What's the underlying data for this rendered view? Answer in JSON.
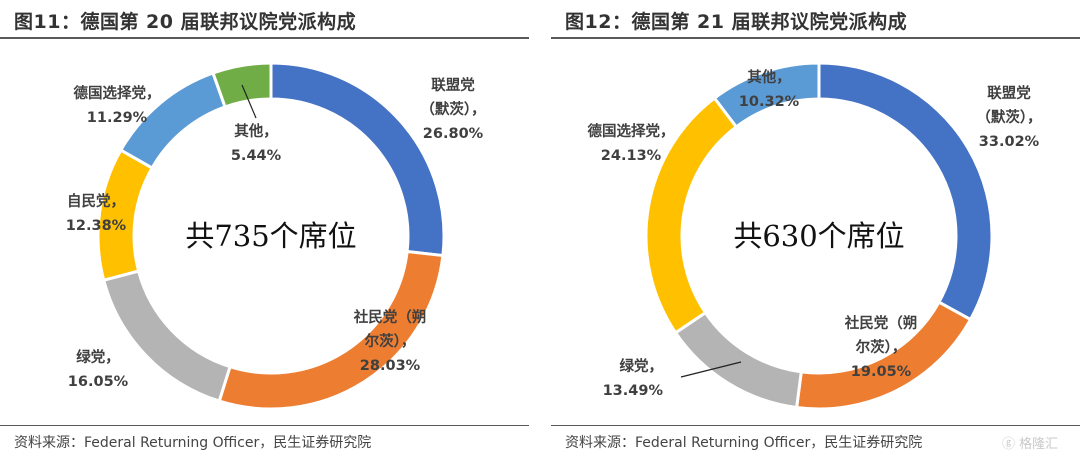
{
  "panels": [
    {
      "title": "图11：德国第 20 届联邦议院党派构成",
      "center_label": "共735个席位",
      "source": "资料来源：Federal Returning Officer，民生证券研究院"
    },
    {
      "title": "图12：德国第 21 届联邦议院党派构成",
      "center_label": "共630个席位",
      "source": "资料来源：Federal Returning Officer，民生证券研究院"
    }
  ],
  "chart_data": [
    {
      "type": "pie",
      "variant": "donut",
      "title": "图11：德国第 20 届联邦议院党派构成",
      "center_text": "共735个席位",
      "start": "12 o'clock, clockwise",
      "slices": [
        {
          "name": "联盟党（默茨）",
          "value": 26.8,
          "label": [
            "联盟党",
            "（默茨），",
            "26.80%"
          ],
          "color": "#4472c4"
        },
        {
          "name": "社民党（朔尔茨）",
          "value": 28.03,
          "label": [
            "社民党（朔",
            "尔茨），",
            "28.03%"
          ],
          "color": "#ed7d31"
        },
        {
          "name": "绿党",
          "value": 16.05,
          "label": [
            "绿党，",
            "16.05%"
          ],
          "color": "#b4b4b4"
        },
        {
          "name": "自民党",
          "value": 12.38,
          "label": [
            "自民党，",
            "12.38%"
          ],
          "color": "#ffc000"
        },
        {
          "name": "德国选择党",
          "value": 11.29,
          "label": [
            "德国选择党，",
            "11.29%"
          ],
          "color": "#5b9bd5"
        },
        {
          "name": "其他",
          "value": 5.44,
          "label": [
            "其他，",
            "5.44%"
          ],
          "color": "#70ad47"
        }
      ]
    },
    {
      "type": "pie",
      "variant": "donut",
      "title": "图12：德国第 21 届联邦议院党派构成",
      "center_text": "共630个席位",
      "start": "12 o'clock, clockwise",
      "slices": [
        {
          "name": "联盟党（默茨）",
          "value": 33.02,
          "label": [
            "联盟党",
            "（默茨），",
            "33.02%"
          ],
          "color": "#4472c4"
        },
        {
          "name": "社民党（朔尔茨）",
          "value": 19.05,
          "label": [
            "社民党（朔",
            "尔茨），",
            "19.05%"
          ],
          "color": "#ed7d31"
        },
        {
          "name": "绿党",
          "value": 13.49,
          "label": [
            "绿党，",
            "13.49%"
          ],
          "color": "#b4b4b4"
        },
        {
          "name": "德国选择党",
          "value": 24.13,
          "label": [
            "德国选择党，",
            "24.13%"
          ],
          "color": "#ffc000"
        },
        {
          "name": "其他",
          "value": 10.32,
          "label": [
            "其他，",
            "10.32%"
          ],
          "color": "#5b9bd5"
        }
      ]
    }
  ],
  "watermark": "格隆汇"
}
